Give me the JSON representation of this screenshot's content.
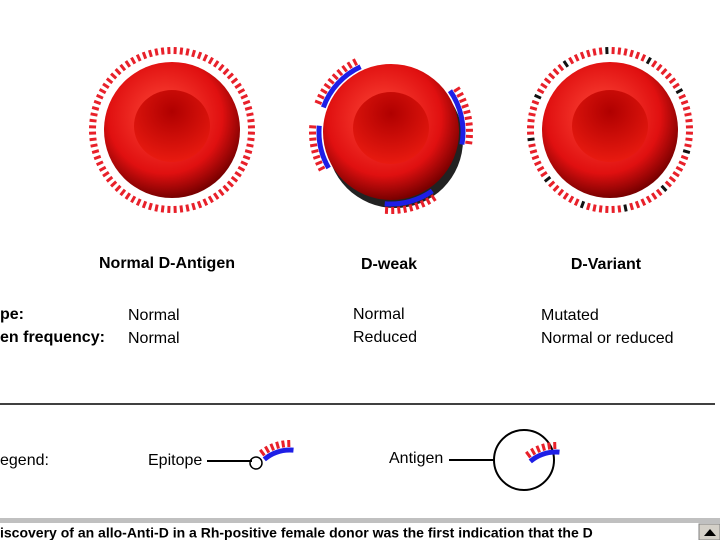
{
  "cells": [
    {
      "label": "Normal D-Antigen",
      "epitope": "Normal",
      "antigen_frequency": "Normal"
    },
    {
      "label": "D-weak",
      "epitope": "Normal",
      "antigen_frequency": "Reduced"
    },
    {
      "label": "D-Variant",
      "epitope": "Mutated",
      "antigen_frequency": "Normal or reduced"
    }
  ],
  "row_labels": [
    "pe:",
    "en frequency:"
  ],
  "legend": {
    "title": "egend:",
    "epitope": "Epitope",
    "antigen": "Antigen"
  },
  "footer": "iscovery of an allo-Anti-D in a Rh-positive female donor was the first indication that the D"
}
